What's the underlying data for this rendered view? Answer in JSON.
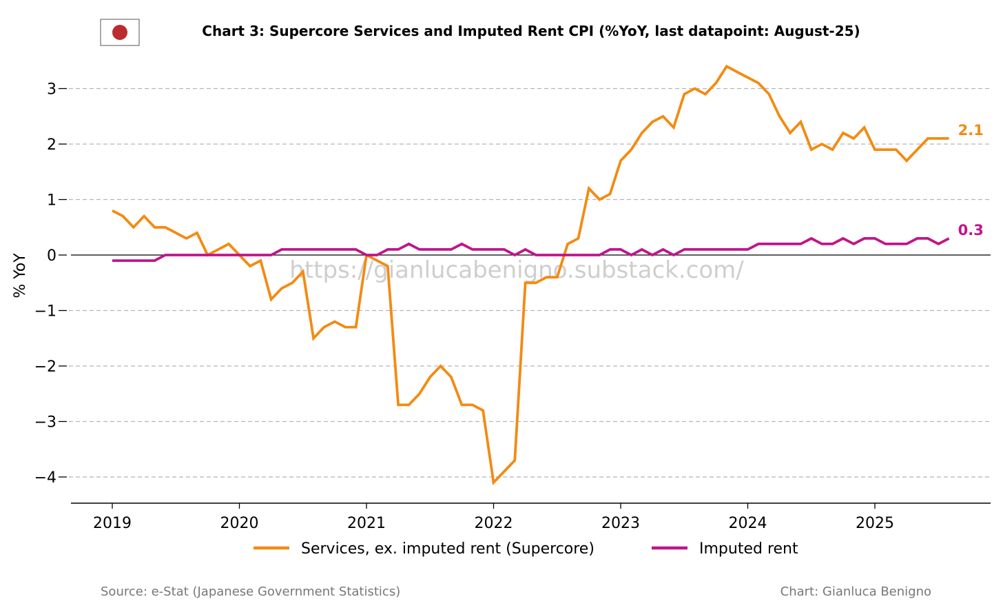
{
  "chart_data": {
    "type": "line",
    "title": "Chart 3: Supercore Services and Imputed Rent CPI (%YoY, last datapoint: August-25)",
    "ylabel": "% YoY",
    "xlabel": "",
    "ylim": [
      -4.5,
      3.6
    ],
    "yticks": [
      3,
      2,
      1,
      0,
      -1,
      -2,
      -3,
      -4
    ],
    "ytick_labels": [
      "3",
      "2",
      "1",
      "0",
      "−1",
      "−2",
      "−3",
      "−4"
    ],
    "xticks": [
      "2019",
      "2020",
      "2021",
      "2022",
      "2023",
      "2024",
      "2025"
    ],
    "grid": "horizontal dashed",
    "legend_position": "bottom-center",
    "series": [
      {
        "name": "Services, ex. imputed rent (Supercore)",
        "color": "#F28B12",
        "end_label": "2.1",
        "x": [
          "2019-01",
          "2019-02",
          "2019-03",
          "2019-04",
          "2019-05",
          "2019-06",
          "2019-07",
          "2019-08",
          "2019-09",
          "2019-10",
          "2019-11",
          "2019-12",
          "2020-01",
          "2020-02",
          "2020-03",
          "2020-04",
          "2020-05",
          "2020-06",
          "2020-07",
          "2020-08",
          "2020-09",
          "2020-10",
          "2020-11",
          "2020-12",
          "2021-01",
          "2021-02",
          "2021-03",
          "2021-04",
          "2021-05",
          "2021-06",
          "2021-07",
          "2021-08",
          "2021-09",
          "2021-10",
          "2021-11",
          "2021-12",
          "2022-01",
          "2022-02",
          "2022-03",
          "2022-04",
          "2022-05",
          "2022-06",
          "2022-07",
          "2022-08",
          "2022-09",
          "2022-10",
          "2022-11",
          "2022-12",
          "2023-01",
          "2023-02",
          "2023-03",
          "2023-04",
          "2023-05",
          "2023-06",
          "2023-07",
          "2023-08",
          "2023-09",
          "2023-10",
          "2023-11",
          "2023-12",
          "2024-01",
          "2024-02",
          "2024-03",
          "2024-04",
          "2024-05",
          "2024-06",
          "2024-07",
          "2024-08",
          "2024-09",
          "2024-10",
          "2024-11",
          "2024-12",
          "2025-01",
          "2025-02",
          "2025-03",
          "2025-04",
          "2025-05",
          "2025-06",
          "2025-07",
          "2025-08"
        ],
        "values": [
          0.8,
          0.7,
          0.5,
          0.7,
          0.5,
          0.5,
          0.4,
          0.3,
          0.4,
          0.0,
          0.1,
          0.2,
          0.0,
          -0.2,
          -0.1,
          -0.8,
          -0.6,
          -0.5,
          -0.3,
          -1.5,
          -1.3,
          -1.2,
          -1.3,
          -1.3,
          0.0,
          -0.1,
          -0.2,
          -2.7,
          -2.7,
          -2.5,
          -2.2,
          -2.0,
          -2.2,
          -2.7,
          -2.7,
          -2.8,
          -4.1,
          -3.9,
          -3.7,
          -0.5,
          -0.5,
          -0.4,
          -0.4,
          0.2,
          0.3,
          1.2,
          1.0,
          1.1,
          1.7,
          1.9,
          2.2,
          2.4,
          2.5,
          2.3,
          2.9,
          3.0,
          2.9,
          3.1,
          3.4,
          3.3,
          3.2,
          3.1,
          2.9,
          2.5,
          2.2,
          2.4,
          1.9,
          2.0,
          1.9,
          2.2,
          2.1,
          2.3,
          1.9,
          1.9,
          1.9,
          1.7,
          1.9,
          2.1,
          2.1,
          2.1
        ]
      },
      {
        "name": "Imputed rent",
        "color": "#C0148C",
        "end_label": "0.3",
        "x": [
          "2019-01",
          "2019-02",
          "2019-03",
          "2019-04",
          "2019-05",
          "2019-06",
          "2019-07",
          "2019-08",
          "2019-09",
          "2019-10",
          "2019-11",
          "2019-12",
          "2020-01",
          "2020-02",
          "2020-03",
          "2020-04",
          "2020-05",
          "2020-06",
          "2020-07",
          "2020-08",
          "2020-09",
          "2020-10",
          "2020-11",
          "2020-12",
          "2021-01",
          "2021-02",
          "2021-03",
          "2021-04",
          "2021-05",
          "2021-06",
          "2021-07",
          "2021-08",
          "2021-09",
          "2021-10",
          "2021-11",
          "2021-12",
          "2022-01",
          "2022-02",
          "2022-03",
          "2022-04",
          "2022-05",
          "2022-06",
          "2022-07",
          "2022-08",
          "2022-09",
          "2022-10",
          "2022-11",
          "2022-12",
          "2023-01",
          "2023-02",
          "2023-03",
          "2023-04",
          "2023-05",
          "2023-06",
          "2023-07",
          "2023-08",
          "2023-09",
          "2023-10",
          "2023-11",
          "2023-12",
          "2024-01",
          "2024-02",
          "2024-03",
          "2024-04",
          "2024-05",
          "2024-06",
          "2024-07",
          "2024-08",
          "2024-09",
          "2024-10",
          "2024-11",
          "2024-12",
          "2025-01",
          "2025-02",
          "2025-03",
          "2025-04",
          "2025-05",
          "2025-06",
          "2025-07",
          "2025-08"
        ],
        "values": [
          -0.1,
          -0.1,
          -0.1,
          -0.1,
          -0.1,
          0.0,
          0.0,
          0.0,
          0.0,
          0.0,
          0.0,
          0.0,
          0.0,
          0.0,
          0.0,
          0.0,
          0.1,
          0.1,
          0.1,
          0.1,
          0.1,
          0.1,
          0.1,
          0.1,
          0.0,
          0.0,
          0.1,
          0.1,
          0.2,
          0.1,
          0.1,
          0.1,
          0.1,
          0.2,
          0.1,
          0.1,
          0.1,
          0.1,
          0.0,
          0.1,
          0.0,
          0.0,
          0.0,
          0.0,
          0.0,
          0.0,
          0.0,
          0.1,
          0.1,
          0.0,
          0.1,
          0.0,
          0.1,
          0.0,
          0.1,
          0.1,
          0.1,
          0.1,
          0.1,
          0.1,
          0.1,
          0.2,
          0.2,
          0.2,
          0.2,
          0.2,
          0.3,
          0.2,
          0.2,
          0.3,
          0.2,
          0.3,
          0.3,
          0.2,
          0.2,
          0.2,
          0.3,
          0.3,
          0.2,
          0.3
        ]
      }
    ]
  },
  "watermark": "https://gianlucabenigno.substack.com/",
  "footer": {
    "source": "Source: e-Stat (Japanese Government Statistics)",
    "credit": "Chart: Gianluca Benigno"
  },
  "flag": {
    "name": "japan-flag",
    "sun_color": "#BC2B2F"
  }
}
